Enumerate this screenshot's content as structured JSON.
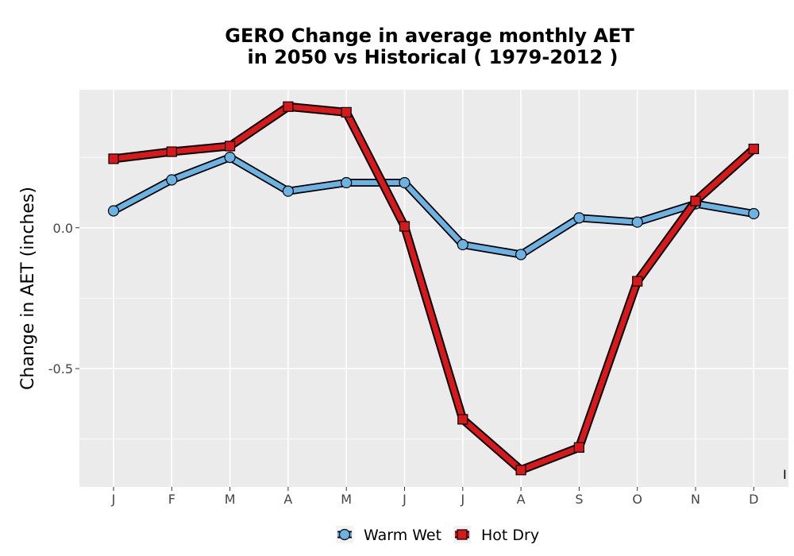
{
  "chart_data": {
    "type": "line",
    "title_lines": [
      "GERO  Change in average monthly AET",
      "in 2050 vs Historical ( 1979-2012 )"
    ],
    "xlabel": "",
    "ylabel": "Change in AET (inches)",
    "categories": [
      "J",
      "F",
      "M",
      "A",
      "M",
      "J",
      "J",
      "A",
      "S",
      "O",
      "N",
      "D"
    ],
    "y_ticks": [
      0.0,
      -0.5
    ],
    "y_tick_labels": [
      "0.0",
      "-0.5"
    ],
    "ylim": [
      -0.92,
      0.49
    ],
    "grid": true,
    "legend_position": "bottom",
    "series": [
      {
        "name": "Warm Wet",
        "color": "#6CB2E2",
        "marker": "circle",
        "values": [
          0.06,
          0.17,
          0.25,
          0.13,
          0.16,
          0.16,
          -0.06,
          -0.095,
          0.035,
          0.02,
          0.085,
          0.05
        ]
      },
      {
        "name": "Hot Dry",
        "color": "#D7191C",
        "marker": "square",
        "values": [
          0.245,
          0.27,
          0.29,
          0.43,
          0.41,
          0.005,
          -0.68,
          -0.86,
          -0.78,
          -0.19,
          0.095,
          0.28
        ]
      }
    ],
    "stray_text": "I"
  },
  "colors": {
    "panel_background": "#EBEBEB",
    "grid_major": "#FFFFFF",
    "outline": "#000000"
  }
}
